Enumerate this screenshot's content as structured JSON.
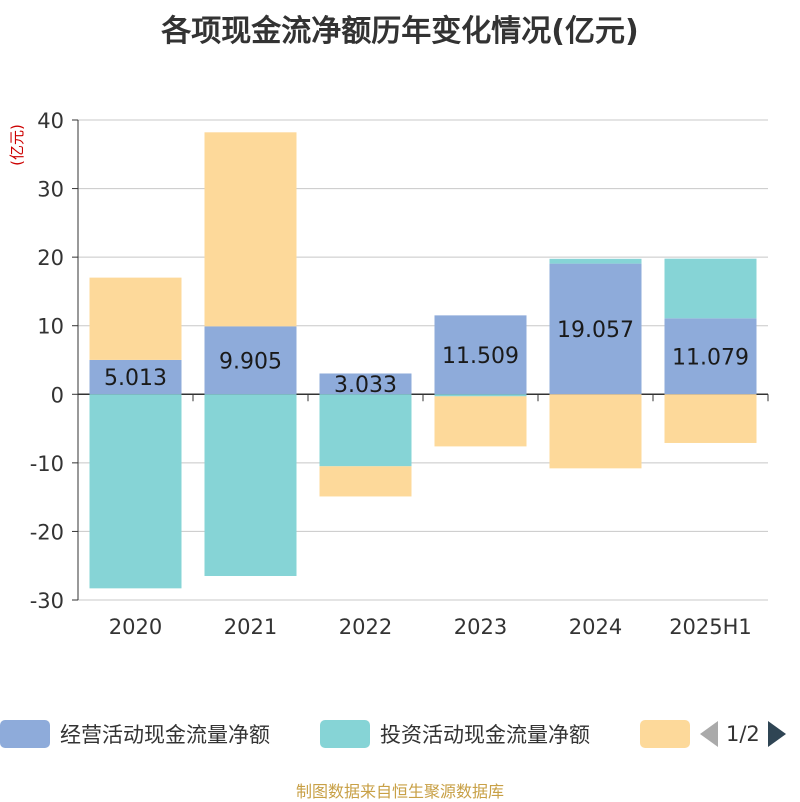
{
  "title": "各项现金流净额历年变化情况(亿元)",
  "source": "制图数据来自恒生聚源数据库",
  "legend": {
    "items": [
      {
        "label": "经营活动现金流量净额",
        "color": "#8eabda"
      },
      {
        "label": "投资活动现金流量净额",
        "color": "#86d4d6"
      },
      {
        "label": "",
        "color": "#fdd99a"
      }
    ],
    "page": "1/2"
  },
  "chart_data": {
    "type": "bar",
    "stacked": true,
    "categories": [
      "2020",
      "2021",
      "2022",
      "2023",
      "2024",
      "2025H1"
    ],
    "ylabel": "(亿元)",
    "ylim": [
      -30,
      40
    ],
    "yticks": [
      40,
      30,
      20,
      10,
      0,
      -10,
      -20,
      -30
    ],
    "grid": true,
    "series": [
      {
        "name": "经营活动现金流量净额",
        "color": "#8eabda",
        "values": [
          5.013,
          9.905,
          3.033,
          11.509,
          19.057,
          11.079
        ],
        "labels": [
          "5.013",
          "9.905",
          "3.033",
          "11.509",
          "19.057",
          "11.079"
        ]
      },
      {
        "name": "投资活动现金流量净额",
        "color": "#86d4d6",
        "values": [
          -28.3,
          -26.5,
          -10.5,
          -0.3,
          0.7,
          8.7
        ]
      },
      {
        "color": "#fdd99a",
        "values": [
          12.0,
          28.3,
          -4.4,
          -7.3,
          -10.8,
          -7.1
        ]
      }
    ]
  }
}
